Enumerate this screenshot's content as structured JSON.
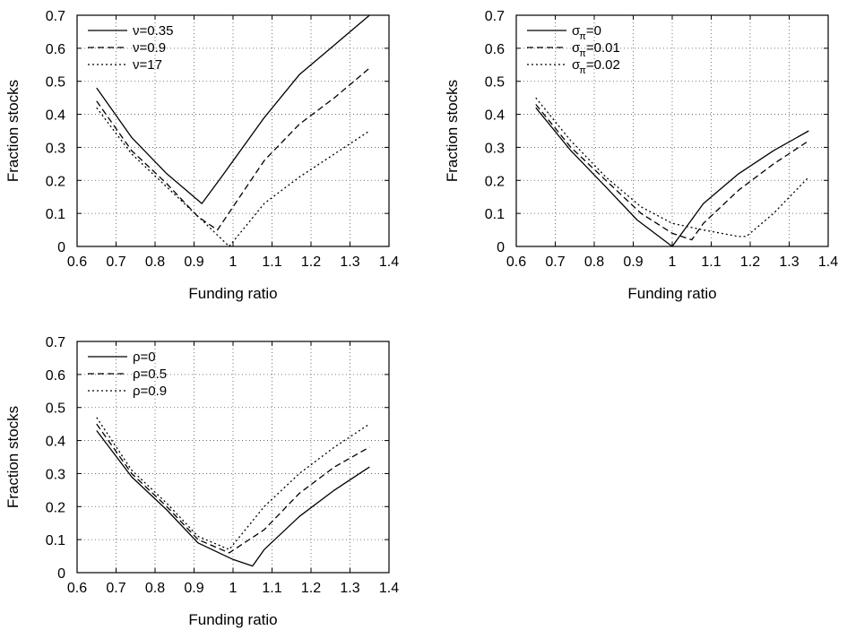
{
  "chart_data": [
    {
      "type": "line",
      "xlabel": "Funding ratio",
      "ylabel": "Fraction stocks",
      "xlim": [
        0.6,
        1.4
      ],
      "ylim": [
        0,
        0.7
      ],
      "xticks": [
        "0.6",
        "0.7",
        "0.8",
        "0.9",
        "1",
        "1.1",
        "1.2",
        "1.3",
        "1.4"
      ],
      "yticks": [
        "0",
        "0.1",
        "0.2",
        "0.3",
        "0.4",
        "0.5",
        "0.6",
        "0.7"
      ],
      "grid": true,
      "legend_position": "top-left",
      "series": [
        {
          "name": "ν=0.35",
          "style": "solid",
          "x": [
            0.65,
            0.74,
            0.83,
            0.92,
            0.97,
            1.08,
            1.17,
            1.26,
            1.35
          ],
          "y": [
            0.48,
            0.33,
            0.22,
            0.13,
            0.21,
            0.39,
            0.52,
            0.61,
            0.7
          ]
        },
        {
          "name": "ν=0.9",
          "style": "dashed",
          "x": [
            0.65,
            0.74,
            0.83,
            0.91,
            0.96,
            1.08,
            1.17,
            1.26,
            1.35
          ],
          "y": [
            0.44,
            0.29,
            0.19,
            0.09,
            0.05,
            0.26,
            0.37,
            0.45,
            0.54
          ]
        },
        {
          "name": "ν=17",
          "style": "dotted",
          "x": [
            0.65,
            0.74,
            0.83,
            0.92,
            0.99,
            1.08,
            1.17,
            1.26,
            1.35
          ],
          "y": [
            0.42,
            0.28,
            0.18,
            0.08,
            0.0,
            0.13,
            0.21,
            0.28,
            0.35
          ]
        }
      ]
    },
    {
      "type": "line",
      "xlabel": "Funding ratio",
      "ylabel": "Fraction stocks",
      "xlim": [
        0.6,
        1.4
      ],
      "ylim": [
        0,
        0.7
      ],
      "xticks": [
        "0.6",
        "0.7",
        "0.8",
        "0.9",
        "1",
        "1.1",
        "1.2",
        "1.3",
        "1.4"
      ],
      "yticks": [
        "0",
        "0.1",
        "0.2",
        "0.3",
        "0.4",
        "0.5",
        "0.6",
        "0.7"
      ],
      "grid": true,
      "legend_position": "top-left",
      "series": [
        {
          "name": "σ",
          "name_sub": "π",
          "name_suffix": "=0",
          "style": "solid",
          "x": [
            0.65,
            0.74,
            0.83,
            0.91,
            1.0,
            1.08,
            1.17,
            1.26,
            1.35
          ],
          "y": [
            0.42,
            0.29,
            0.18,
            0.08,
            0.0,
            0.13,
            0.22,
            0.29,
            0.35
          ]
        },
        {
          "name": "σ",
          "name_sub": "π",
          "name_suffix": "=0.01",
          "style": "dashed",
          "x": [
            0.65,
            0.74,
            0.83,
            0.92,
            1.0,
            1.05,
            1.08,
            1.17,
            1.26,
            1.35
          ],
          "y": [
            0.43,
            0.3,
            0.2,
            0.1,
            0.04,
            0.02,
            0.07,
            0.17,
            0.25,
            0.32
          ]
        },
        {
          "name": "σ",
          "name_sub": "π",
          "name_suffix": "=0.02",
          "style": "dotted",
          "x": [
            0.65,
            0.74,
            0.83,
            0.92,
            1.0,
            1.08,
            1.17,
            1.19,
            1.26,
            1.35
          ],
          "y": [
            0.45,
            0.32,
            0.21,
            0.12,
            0.07,
            0.05,
            0.03,
            0.03,
            0.1,
            0.21
          ]
        }
      ]
    },
    {
      "type": "line",
      "xlabel": "Funding ratio",
      "ylabel": "Fraction stocks",
      "xlim": [
        0.6,
        1.4
      ],
      "ylim": [
        0,
        0.7
      ],
      "xticks": [
        "0.6",
        "0.7",
        "0.8",
        "0.9",
        "1",
        "1.1",
        "1.2",
        "1.3",
        "1.4"
      ],
      "yticks": [
        "0",
        "0.1",
        "0.2",
        "0.3",
        "0.4",
        "0.5",
        "0.6",
        "0.7"
      ],
      "grid": true,
      "legend_position": "top-left",
      "series": [
        {
          "name": "ρ=0",
          "style": "solid",
          "x": [
            0.65,
            0.74,
            0.83,
            0.91,
            1.0,
            1.05,
            1.08,
            1.17,
            1.26,
            1.35
          ],
          "y": [
            0.43,
            0.29,
            0.19,
            0.09,
            0.04,
            0.02,
            0.07,
            0.17,
            0.25,
            0.32
          ]
        },
        {
          "name": "ρ=0.5",
          "style": "dashed",
          "x": [
            0.65,
            0.74,
            0.83,
            0.91,
            0.99,
            1.08,
            1.17,
            1.26,
            1.35
          ],
          "y": [
            0.45,
            0.3,
            0.2,
            0.1,
            0.06,
            0.13,
            0.24,
            0.32,
            0.38
          ]
        },
        {
          "name": "ρ=0.9",
          "style": "dotted",
          "x": [
            0.65,
            0.74,
            0.83,
            0.91,
            0.99,
            1.08,
            1.17,
            1.26,
            1.35
          ],
          "y": [
            0.47,
            0.31,
            0.21,
            0.11,
            0.07,
            0.2,
            0.3,
            0.38,
            0.45
          ]
        }
      ]
    }
  ]
}
